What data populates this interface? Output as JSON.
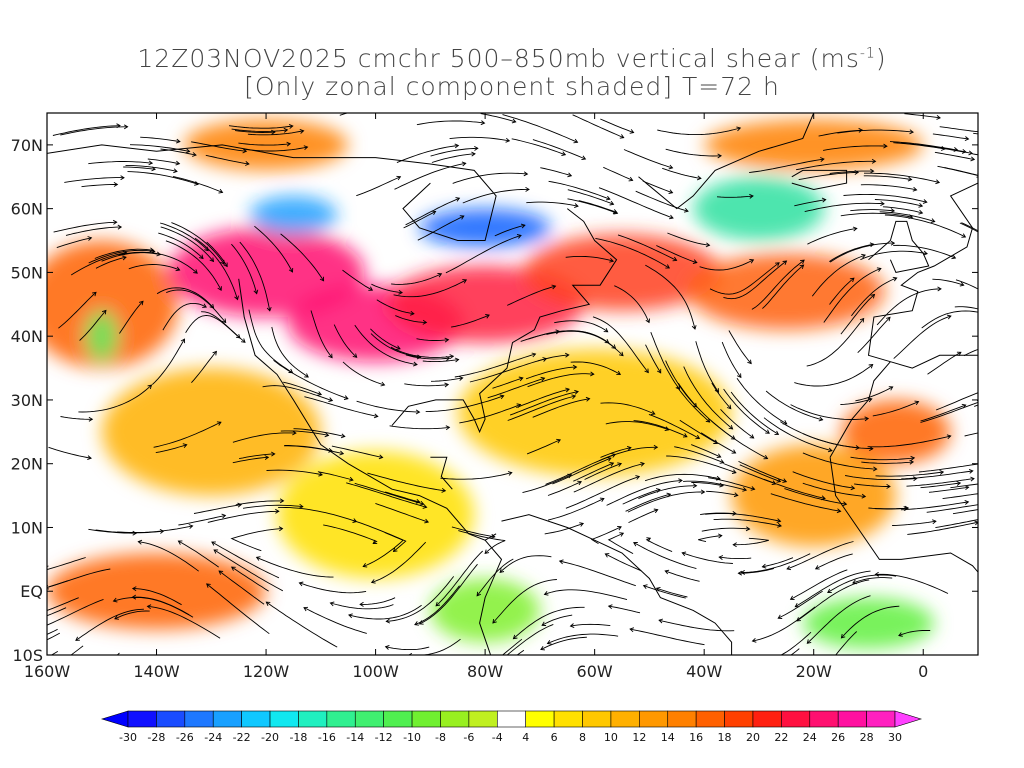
{
  "title": {
    "line1_prefix": "12Z03NOV2025 cmchr 500–850mb vertical shear (ms",
    "line1_sup": "-1",
    "line1_suffix": ")",
    "line2": "[Only zonal component shaded] T=72 h"
  },
  "map": {
    "projection": "lat-lon",
    "lon_range": [
      -160,
      10
    ],
    "lat_range": [
      -10,
      75
    ],
    "lat_labels": [
      {
        "lat": 70,
        "text": "70N"
      },
      {
        "lat": 60,
        "text": "60N"
      },
      {
        "lat": 50,
        "text": "50N"
      },
      {
        "lat": 40,
        "text": "40N"
      },
      {
        "lat": 30,
        "text": "30N"
      },
      {
        "lat": 20,
        "text": "20N"
      },
      {
        "lat": 10,
        "text": "10N"
      },
      {
        "lat": 0,
        "text": "EQ"
      },
      {
        "lat": -10,
        "text": "10S"
      }
    ],
    "lon_labels": [
      {
        "lon": -160,
        "text": "160W"
      },
      {
        "lon": -140,
        "text": "140W"
      },
      {
        "lon": -120,
        "text": "120W"
      },
      {
        "lon": -100,
        "text": "100W"
      },
      {
        "lon": -80,
        "text": "80W"
      },
      {
        "lon": -60,
        "text": "60W"
      },
      {
        "lon": -40,
        "text": "40W"
      },
      {
        "lon": -20,
        "text": "20W"
      },
      {
        "lon": 0,
        "text": "0"
      }
    ]
  },
  "colorbar": {
    "levels": [
      "-30",
      "-28",
      "-26",
      "-24",
      "-22",
      "-20",
      "-18",
      "-16",
      "-14",
      "-12",
      "-10",
      "-8",
      "-6",
      "-4",
      "4",
      "6",
      "8",
      "10",
      "12",
      "14",
      "16",
      "18",
      "20",
      "22",
      "24",
      "26",
      "28",
      "30"
    ],
    "colors": [
      "#1010ff",
      "#1a4cff",
      "#1e78ff",
      "#18a0ff",
      "#10c8ff",
      "#10e8f0",
      "#20f0c0",
      "#30f090",
      "#40f070",
      "#50f050",
      "#70f030",
      "#98f020",
      "#c0f020",
      "#ffffff",
      "#ffff00",
      "#ffe000",
      "#ffc800",
      "#ffb000",
      "#ff9800",
      "#ff8000",
      "#ff6000",
      "#ff4000",
      "#ff2010",
      "#ff1040",
      "#ff1070",
      "#ff10a0",
      "#ff20c0"
    ],
    "left_tip_color": "#0000ff",
    "right_tip_color": "#ff40ff"
  },
  "shading_blobs": [
    {
      "lon": -150,
      "lat": 45,
      "rx": 14,
      "ry": 10,
      "color": "#ff6000"
    },
    {
      "lon": -120,
      "lat": 50,
      "rx": 18,
      "ry": 7,
      "color": "#ff1070"
    },
    {
      "lon": -100,
      "lat": 42,
      "rx": 16,
      "ry": 6,
      "color": "#ff1070"
    },
    {
      "lon": -80,
      "lat": 45,
      "rx": 18,
      "ry": 6,
      "color": "#ff2040"
    },
    {
      "lon": -55,
      "lat": 50,
      "rx": 18,
      "ry": 6,
      "color": "#ff4020"
    },
    {
      "lon": -25,
      "lat": 47,
      "rx": 18,
      "ry": 6,
      "color": "#ff6010"
    },
    {
      "lon": -80,
      "lat": 57,
      "rx": 12,
      "ry": 3,
      "color": "#1060ff"
    },
    {
      "lon": -115,
      "lat": 59,
      "rx": 8,
      "ry": 3,
      "color": "#20a0ff"
    },
    {
      "lon": -30,
      "lat": 60,
      "rx": 12,
      "ry": 5,
      "color": "#30e0a0"
    },
    {
      "lon": -140,
      "lat": 0,
      "rx": 20,
      "ry": 6,
      "color": "#ff6000"
    },
    {
      "lon": -130,
      "lat": 25,
      "rx": 20,
      "ry": 10,
      "color": "#ffb000"
    },
    {
      "lon": -60,
      "lat": 28,
      "rx": 25,
      "ry": 10,
      "color": "#ffc800"
    },
    {
      "lon": -100,
      "lat": 12,
      "rx": 18,
      "ry": 10,
      "color": "#ffe000"
    },
    {
      "lon": -20,
      "lat": 15,
      "rx": 15,
      "ry": 8,
      "color": "#ff9800"
    },
    {
      "lon": -5,
      "lat": 25,
      "rx": 10,
      "ry": 5,
      "color": "#ff6000"
    },
    {
      "lon": -80,
      "lat": -3,
      "rx": 10,
      "ry": 5,
      "color": "#80f030"
    },
    {
      "lon": -10,
      "lat": -5,
      "rx": 12,
      "ry": 4,
      "color": "#60f040"
    },
    {
      "lon": -150,
      "lat": 40,
      "rx": 3,
      "ry": 4,
      "color": "#60f060"
    },
    {
      "lon": -120,
      "lat": 70,
      "rx": 15,
      "ry": 4,
      "color": "#ff8000"
    },
    {
      "lon": -20,
      "lat": 70,
      "rx": 20,
      "ry": 4,
      "color": "#ff8000"
    }
  ]
}
